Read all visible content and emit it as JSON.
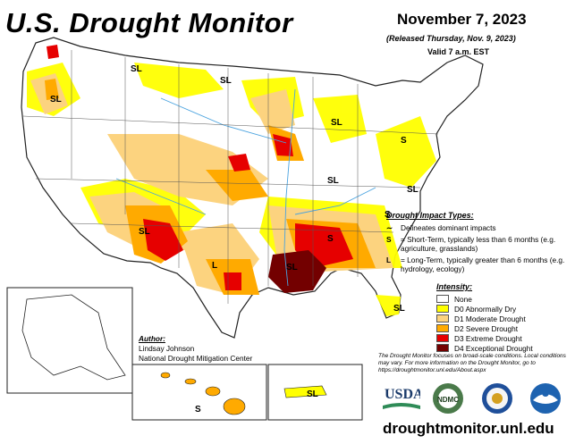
{
  "header": {
    "title": "U.S. Drought Monitor",
    "date": "November 7, 2023",
    "released": "(Released Thursday, Nov. 9, 2023)",
    "valid": "Valid 7 a.m. EST"
  },
  "impact": {
    "heading": "Drought Impact Types:",
    "items": [
      {
        "key": "",
        "text": "Delineates dominant impacts"
      },
      {
        "key": "S",
        "text": "= Short-Term, typically less than 6 months (e.g. agriculture, grasslands)"
      },
      {
        "key": "L",
        "text": "= Long-Term, typically greater than 6 months (e.g. hydrology, ecology)"
      }
    ]
  },
  "intensity": {
    "heading": "Intensity:",
    "items": [
      {
        "label": "None",
        "color": "#ffffff"
      },
      {
        "label": "D0 Abnormally Dry",
        "color": "#ffff00"
      },
      {
        "label": "D1 Moderate Drought",
        "color": "#fcd37f"
      },
      {
        "label": "D2 Severe Drought",
        "color": "#ffaa00"
      },
      {
        "label": "D3 Extreme Drought",
        "color": "#e60000"
      },
      {
        "label": "D4 Exceptional Drought",
        "color": "#730000"
      }
    ]
  },
  "author": {
    "heading": "Author:",
    "name": "Lindsay Johnson",
    "org": "National Drought Mitigation Center"
  },
  "note": "The Drought Monitor focuses on broad-scale conditions. Local conditions may vary. For more information on the Drought Monitor, go to https://droughtmonitor.unl.edu/About.aspx",
  "url": "droughtmonitor.unl.edu",
  "logos": {
    "usda": "USDA",
    "ndmc": "NDMC"
  },
  "map_labels": {
    "sl": "SL",
    "s": "S",
    "l": "L"
  },
  "colors": {
    "water": "#4aa3df",
    "outline": "#222222"
  }
}
